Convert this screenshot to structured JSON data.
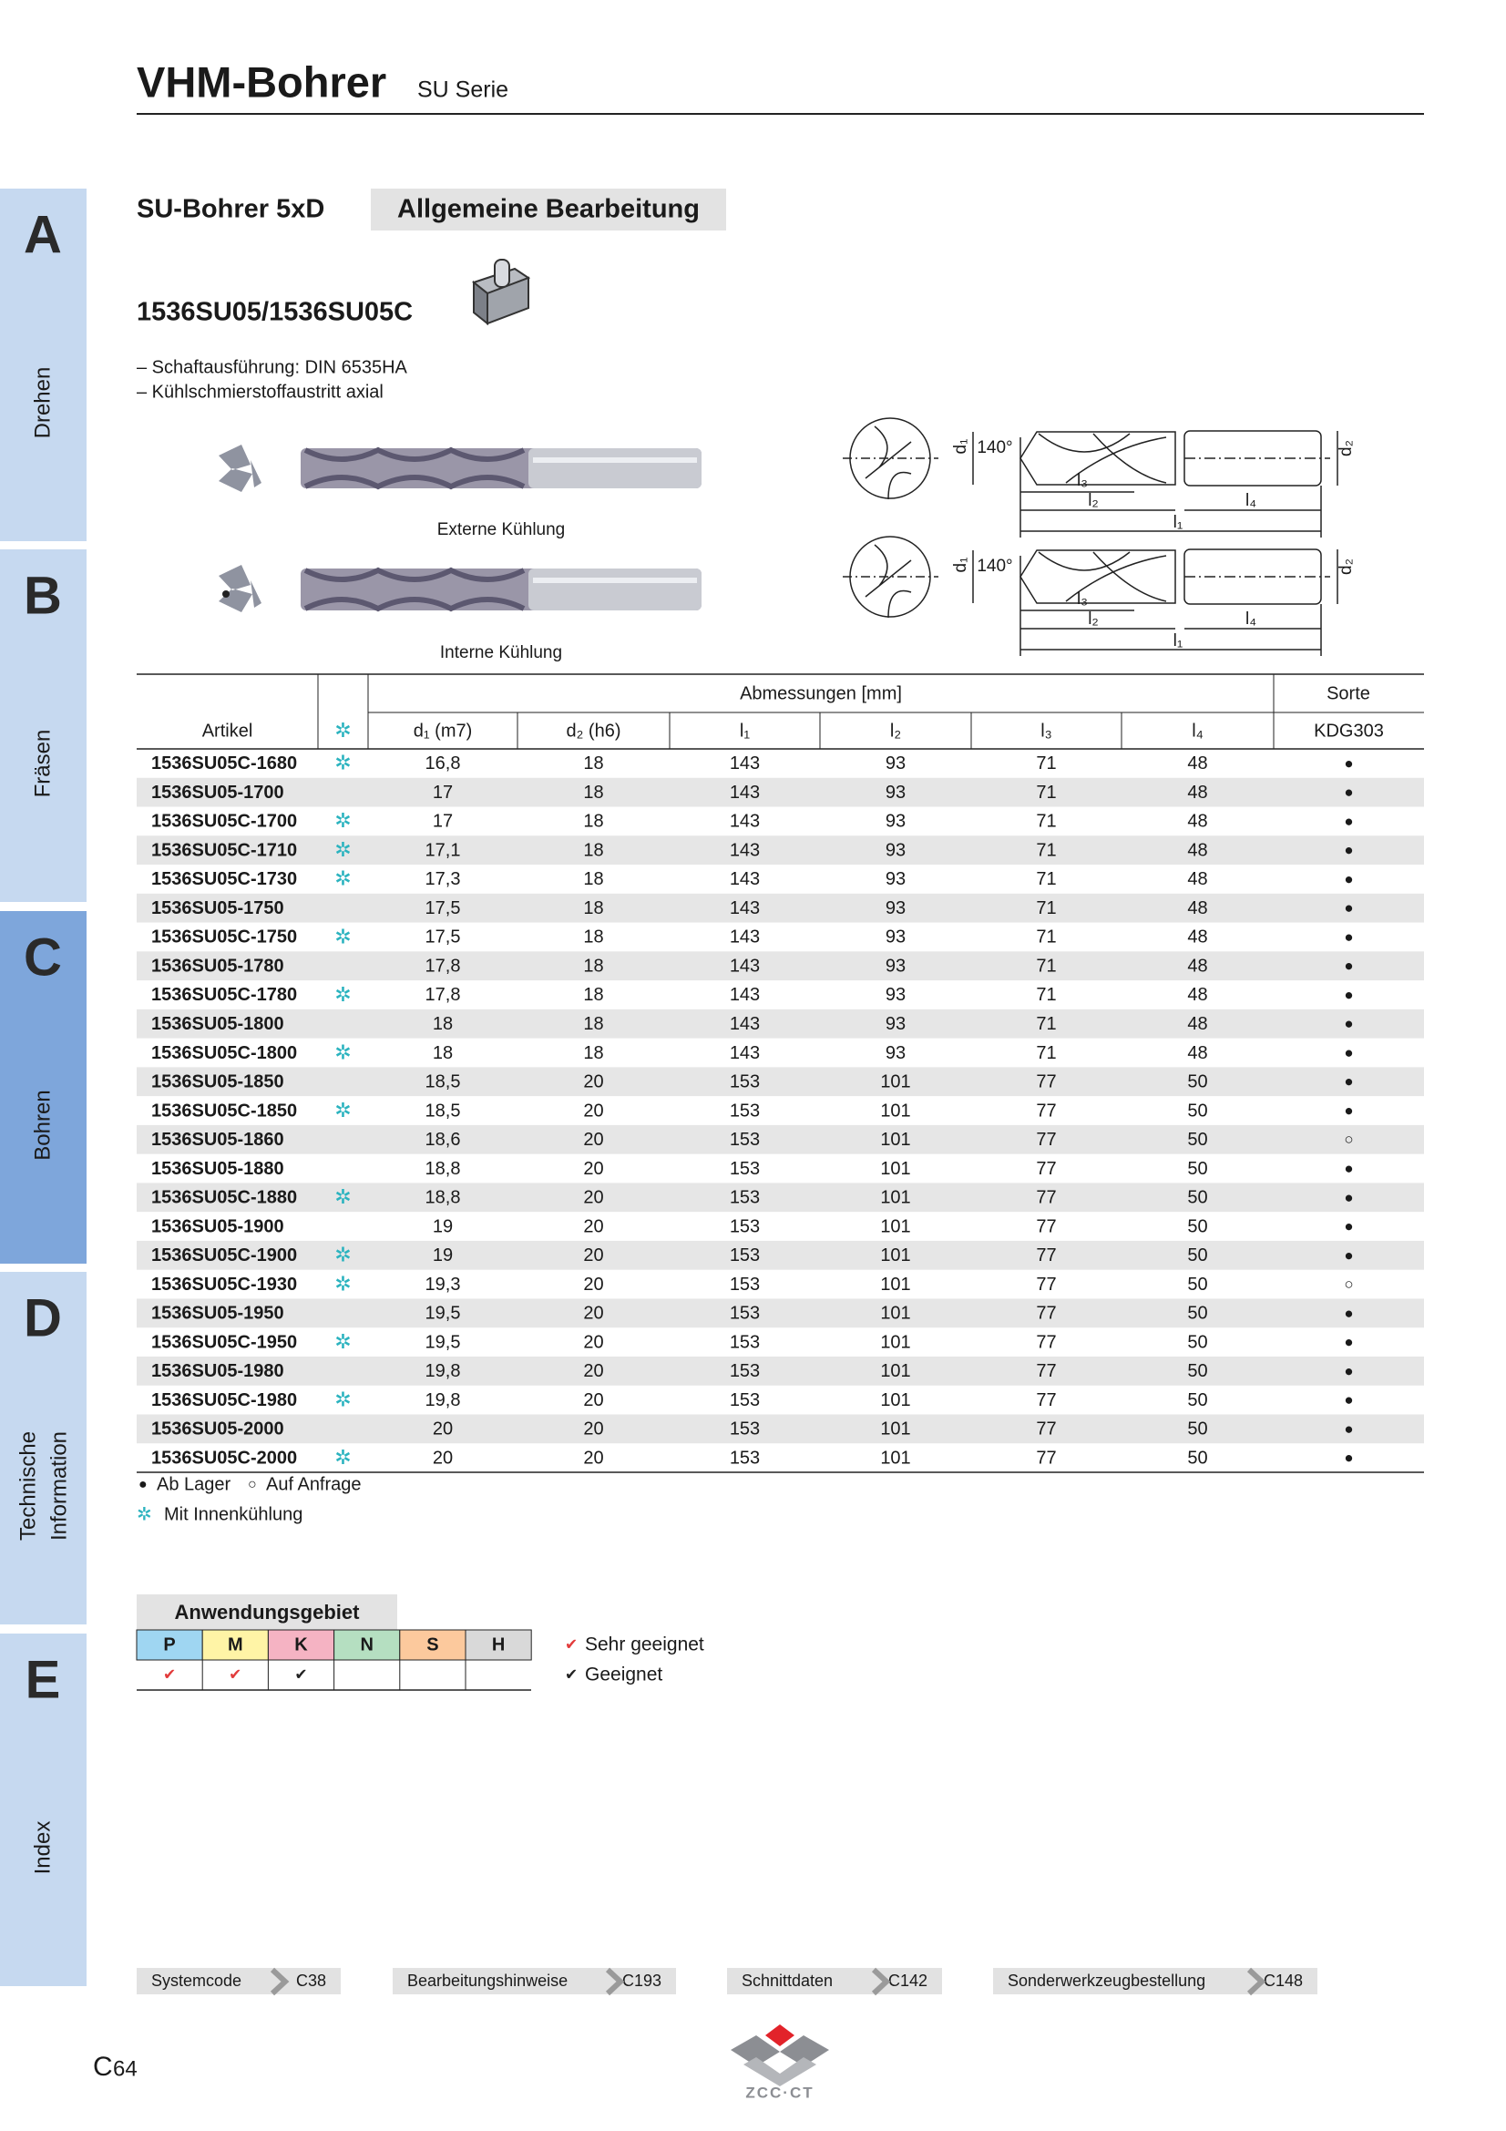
{
  "header": {
    "title": "VHM-Bohrer",
    "series": "SU Serie"
  },
  "tabs": [
    {
      "letter": "A",
      "label": "Drehen"
    },
    {
      "letter": "B",
      "label": "Fräsen"
    },
    {
      "letter": "C",
      "label": "Bohren"
    },
    {
      "letter": "D",
      "label": [
        "Technische",
        "Information"
      ]
    },
    {
      "letter": "E",
      "label": "Index"
    }
  ],
  "active_tab": "C",
  "section": {
    "title": "SU-Bohrer 5xD",
    "category": "Allgemeine Bearbeitung",
    "product": "1536SU05/1536SU05C",
    "features": [
      "– Schaftausführung: DIN 6535HA",
      "– Kühlschmierstoffaustritt axial"
    ]
  },
  "images": {
    "external": "Externe Kühlung",
    "internal": "Interne Kühlung"
  },
  "diagram_labels": {
    "d1": "d₁",
    "angle": "140°",
    "d2": "d₂",
    "l3": "l₃",
    "l2": "l₂",
    "l4": "l₄",
    "l1": "l₁"
  },
  "table": {
    "group_header": "Abmessungen [mm]",
    "sorte_header": "Sorte",
    "columns": [
      "Artikel",
      "✲",
      "d₁ (m7)",
      "d₂ (h6)",
      "l₁",
      "l₂",
      "l₃",
      "l₄",
      "KDG303"
    ],
    "rows": [
      [
        "1536SU05C-1680",
        "✲",
        "16,8",
        "18",
        "143",
        "93",
        "71",
        "48",
        "●"
      ],
      [
        "1536SU05-1700",
        null,
        "17",
        "18",
        "143",
        "93",
        "71",
        "48",
        "●"
      ],
      [
        "1536SU05C-1700",
        "✲",
        "17",
        "18",
        "143",
        "93",
        "71",
        "48",
        "●"
      ],
      [
        "1536SU05C-1710",
        "✲",
        "17,1",
        "18",
        "143",
        "93",
        "71",
        "48",
        "●"
      ],
      [
        "1536SU05C-1730",
        "✲",
        "17,3",
        "18",
        "143",
        "93",
        "71",
        "48",
        "●"
      ],
      [
        "1536SU05-1750",
        null,
        "17,5",
        "18",
        "143",
        "93",
        "71",
        "48",
        "●"
      ],
      [
        "1536SU05C-1750",
        "✲",
        "17,5",
        "18",
        "143",
        "93",
        "71",
        "48",
        "●"
      ],
      [
        "1536SU05-1780",
        null,
        "17,8",
        "18",
        "143",
        "93",
        "71",
        "48",
        "●"
      ],
      [
        "1536SU05C-1780",
        "✲",
        "17,8",
        "18",
        "143",
        "93",
        "71",
        "48",
        "●"
      ],
      [
        "1536SU05-1800",
        null,
        "18",
        "18",
        "143",
        "93",
        "71",
        "48",
        "●"
      ],
      [
        "1536SU05C-1800",
        "✲",
        "18",
        "18",
        "143",
        "93",
        "71",
        "48",
        "●"
      ],
      [
        "1536SU05-1850",
        null,
        "18,5",
        "20",
        "153",
        "101",
        "77",
        "50",
        "●"
      ],
      [
        "1536SU05C-1850",
        "✲",
        "18,5",
        "20",
        "153",
        "101",
        "77",
        "50",
        "●"
      ],
      [
        "1536SU05-1860",
        null,
        "18,6",
        "20",
        "153",
        "101",
        "77",
        "50",
        "○"
      ],
      [
        "1536SU05-1880",
        null,
        "18,8",
        "20",
        "153",
        "101",
        "77",
        "50",
        "●"
      ],
      [
        "1536SU05C-1880",
        "✲",
        "18,8",
        "20",
        "153",
        "101",
        "77",
        "50",
        "●"
      ],
      [
        "1536SU05-1900",
        null,
        "19",
        "20",
        "153",
        "101",
        "77",
        "50",
        "●"
      ],
      [
        "1536SU05C-1900",
        "✲",
        "19",
        "20",
        "153",
        "101",
        "77",
        "50",
        "●"
      ],
      [
        "1536SU05C-1930",
        "✲",
        "19,3",
        "20",
        "153",
        "101",
        "77",
        "50",
        "○"
      ],
      [
        "1536SU05-1950",
        null,
        "19,5",
        "20",
        "153",
        "101",
        "77",
        "50",
        "●"
      ],
      [
        "1536SU05C-1950",
        "✲",
        "19,5",
        "20",
        "153",
        "101",
        "77",
        "50",
        "●"
      ],
      [
        "1536SU05-1980",
        null,
        "19,8",
        "20",
        "153",
        "101",
        "77",
        "50",
        "●"
      ],
      [
        "1536SU05C-1980",
        "✲",
        "19,8",
        "20",
        "153",
        "101",
        "77",
        "50",
        "●"
      ],
      [
        "1536SU05-2000",
        null,
        "20",
        "20",
        "153",
        "101",
        "77",
        "50",
        "●"
      ],
      [
        "1536SU05C-2000",
        "✲",
        "20",
        "20",
        "153",
        "101",
        "77",
        "50",
        "●"
      ]
    ]
  },
  "legend": [
    {
      "symbol": "●",
      "text": "Ab Lager"
    },
    {
      "symbol": "○",
      "text": "Auf Anfrage"
    },
    {
      "symbol": "✲",
      "text": "Mit Innenkühlung"
    }
  ],
  "application": {
    "title": "Anwendungsgebiet",
    "materials": [
      "P",
      "M",
      "K",
      "N",
      "S",
      "H"
    ],
    "material_colors": [
      "#9fd6f2",
      "#fff4a6",
      "#f5b3c3",
      "#b5dfc1",
      "#fcc99d",
      "#d9d9d9"
    ],
    "ratings": [
      "✔",
      "✔",
      "✔",
      null,
      null,
      null
    ],
    "rating_colors": [
      "#e23b3b",
      "#e23b3b",
      "#222222",
      null,
      null,
      null
    ],
    "legend": [
      {
        "symbol": "✔",
        "text": "Sehr geeignet",
        "color": "#e23b3b"
      },
      {
        "symbol": "✔",
        "text": "Geeignet",
        "color": "#222222"
      }
    ]
  },
  "links": [
    {
      "label": "Systemcode",
      "page": "C38"
    },
    {
      "label": "Bearbeitungshinweise",
      "page": "C193"
    },
    {
      "label": "Schnittdaten",
      "page": "C142"
    },
    {
      "label": "Sonderwerkzeugbestellung",
      "page": "C148"
    }
  ],
  "page_number": {
    "section": "C",
    "number": "64"
  },
  "logo": "ZCC·CT"
}
